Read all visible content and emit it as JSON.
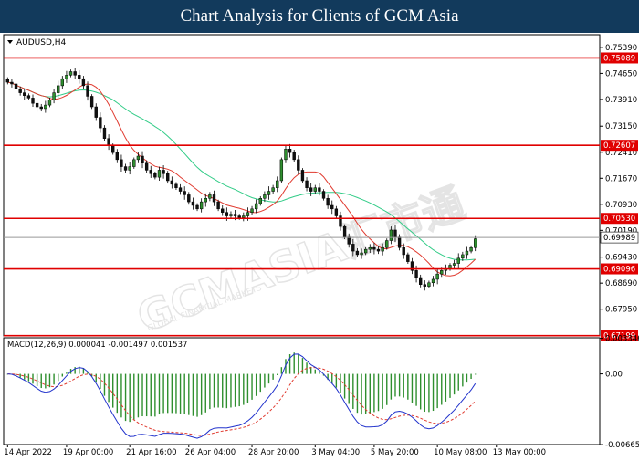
{
  "banner": {
    "title": "Chart Analysis for Clients of GCM Asia"
  },
  "watermark": {
    "brand": "GCMASIA汇市通",
    "sub": "GLOBAL FINANCIAL MARKETS"
  },
  "chart_data": [
    {
      "type": "candlestick",
      "symbol_label": "AUDUSD,H4",
      "colors": {
        "bull": "#2f8f2f",
        "bear": "#111111",
        "ma_fast": "#e03a2f",
        "ma_slow": "#33cc88",
        "sr_line": "#e00000",
        "current": "#999999"
      },
      "ylim": [
        0.6719,
        0.7575
      ],
      "y_ticks": [
        "0.75390",
        "0.74650",
        "0.73910",
        "0.73150",
        "0.72410",
        "0.71670",
        "0.70930",
        "0.70190",
        "0.69430",
        "0.68690",
        "0.67950"
      ],
      "y_tick_values": [
        0.7539,
        0.7465,
        0.7391,
        0.7315,
        0.7241,
        0.7167,
        0.7093,
        0.7019,
        0.6943,
        0.6869,
        0.6795
      ],
      "sr_levels": [
        {
          "label": "0.75089",
          "value": 0.75089
        },
        {
          "label": "0.72607",
          "value": 0.72607
        },
        {
          "label": "0.70530",
          "value": 0.7053
        },
        {
          "label": "0.69096",
          "value": 0.69096
        },
        {
          "label": "0.67199",
          "value": 0.67199
        }
      ],
      "current_price": {
        "label": "0.69989",
        "value": 0.69989
      },
      "x_labels": [
        "14 Apr 2022",
        "19 Apr 00:00",
        "21 Apr 16:00",
        "26 Apr 04:00",
        "28 Apr 20:00",
        "3 May 04:00",
        "5 May 20:00",
        "10 May 08:00",
        "13 May 00:00"
      ],
      "x_label_index": [
        0,
        14,
        29,
        43,
        58,
        73,
        87,
        102,
        116
      ],
      "close_path": [
        0.744,
        0.7435,
        0.742,
        0.741,
        0.7402,
        0.7395,
        0.738,
        0.737,
        0.7365,
        0.7375,
        0.739,
        0.741,
        0.743,
        0.745,
        0.746,
        0.747,
        0.746,
        0.745,
        0.743,
        0.74,
        0.737,
        0.734,
        0.731,
        0.728,
        0.726,
        0.724,
        0.722,
        0.72,
        0.719,
        0.72,
        0.722,
        0.723,
        0.721,
        0.719,
        0.718,
        0.717,
        0.719,
        0.718,
        0.716,
        0.715,
        0.714,
        0.713,
        0.712,
        0.71,
        0.709,
        0.708,
        0.71,
        0.711,
        0.712,
        0.71,
        0.708,
        0.707,
        0.706,
        0.7065,
        0.706,
        0.7055,
        0.706,
        0.707,
        0.708,
        0.7095,
        0.711,
        0.712,
        0.713,
        0.714,
        0.716,
        0.722,
        0.725,
        0.724,
        0.722,
        0.719,
        0.716,
        0.714,
        0.713,
        0.714,
        0.713,
        0.711,
        0.709,
        0.708,
        0.706,
        0.703,
        0.7,
        0.698,
        0.696,
        0.695,
        0.6955,
        0.6965,
        0.697,
        0.6965,
        0.696,
        0.697,
        0.699,
        0.702,
        0.7,
        0.697,
        0.695,
        0.693,
        0.6905,
        0.6885,
        0.6865,
        0.686,
        0.687,
        0.688,
        0.6895,
        0.6905,
        0.691,
        0.692,
        0.6925,
        0.694,
        0.695,
        0.696,
        0.697,
        0.6995
      ]
    },
    {
      "type": "macd",
      "label": "MACD(12,26,9) 0.000041 -0.001497 0.001537",
      "ylim": [
        -0.00665,
        0.0034
      ],
      "y_ticks": [
        "0.003346",
        "0.00",
        "-0.006653"
      ],
      "y_tick_values": [
        0.003346,
        0.0,
        -0.006653
      ],
      "colors": {
        "histogram": "#2f8f2f",
        "signal": "#e03a2f",
        "main": "#2233cc"
      }
    }
  ]
}
